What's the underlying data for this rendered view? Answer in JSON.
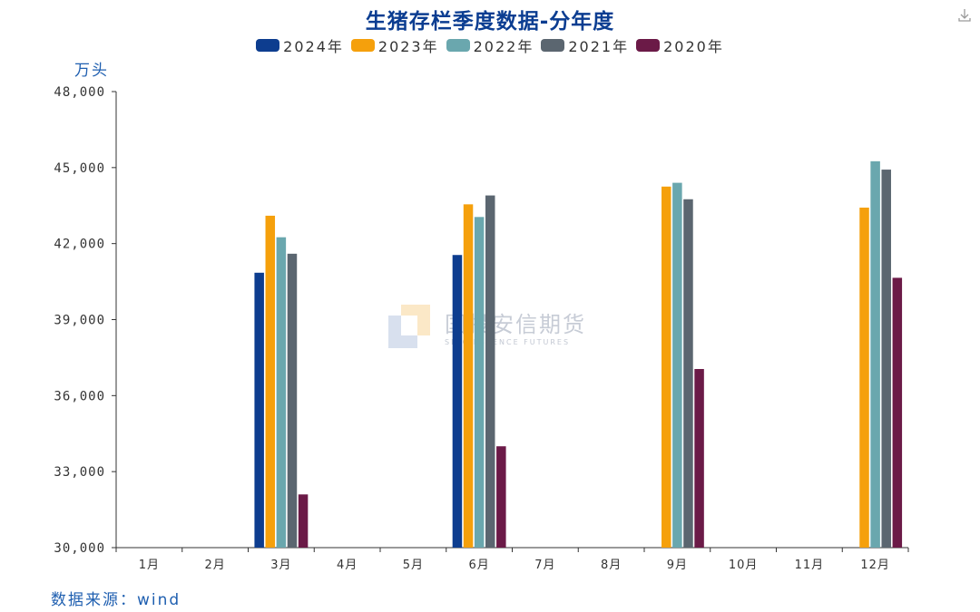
{
  "chart_data": {
    "type": "bar",
    "title": "生猪存栏季度数据-分年度",
    "ylabel": "万头",
    "ylim": [
      30000,
      48000
    ],
    "yticks": [
      "30,000",
      "33,000",
      "36,000",
      "39,000",
      "42,000",
      "45,000",
      "48,000"
    ],
    "ytick_values": [
      30000,
      33000,
      36000,
      39000,
      42000,
      45000,
      48000
    ],
    "categories": [
      "1月",
      "2月",
      "3月",
      "4月",
      "5月",
      "6月",
      "7月",
      "8月",
      "9月",
      "10月",
      "11月",
      "12月"
    ],
    "legend_position": "top-center",
    "grid": false,
    "series": [
      {
        "name": "2024年",
        "color": "#0d3d8f",
        "values": [
          null,
          null,
          40850,
          null,
          null,
          41550,
          null,
          null,
          null,
          null,
          null,
          null
        ]
      },
      {
        "name": "2023年",
        "color": "#f5a00c",
        "values": [
          null,
          null,
          43100,
          null,
          null,
          43550,
          null,
          null,
          44250,
          null,
          null,
          43420
        ]
      },
      {
        "name": "2022年",
        "color": "#6aa7ae",
        "values": [
          null,
          null,
          42250,
          null,
          null,
          43050,
          null,
          null,
          44400,
          null,
          null,
          45250
        ]
      },
      {
        "name": "2021年",
        "color": "#5b6670",
        "values": [
          null,
          null,
          41600,
          null,
          null,
          43900,
          null,
          null,
          43750,
          null,
          null,
          44920
        ]
      },
      {
        "name": "2020年",
        "color": "#6b1a47",
        "values": [
          null,
          null,
          32100,
          null,
          null,
          34000,
          null,
          null,
          37050,
          null,
          null,
          40650
        ]
      }
    ]
  },
  "source": "数据来源：wind",
  "watermark": {
    "cn": "国投安信期货",
    "en": "SDIC ESSENCE FUTURES"
  },
  "icons": {
    "download": "download-icon"
  }
}
